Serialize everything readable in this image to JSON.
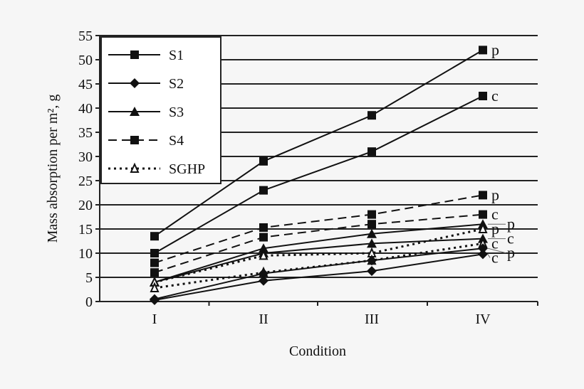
{
  "chart_data": {
    "type": "line",
    "xlabel": "Condition",
    "ylabel": "Mass absorption per m², g",
    "categories": [
      "I",
      "II",
      "III",
      "IV"
    ],
    "ylim": [
      0,
      55
    ],
    "yticks": [
      0,
      5,
      10,
      15,
      20,
      25,
      30,
      35,
      40,
      45,
      50,
      55
    ],
    "grid": "horizontal",
    "legend_position": "top-left",
    "legend": [
      {
        "name": "S1",
        "marker": "square",
        "dash": "solid"
      },
      {
        "name": "S2",
        "marker": "diamond",
        "dash": "solid"
      },
      {
        "name": "S3",
        "marker": "triangle",
        "dash": "solid"
      },
      {
        "name": "S4",
        "marker": "square",
        "dash": "dashed"
      },
      {
        "name": "SGHP",
        "marker": "open-triangle",
        "dash": "dotted"
      }
    ],
    "series": [
      {
        "group": "S1",
        "end_label": "p",
        "values": [
          13.5,
          29,
          38.5,
          52
        ]
      },
      {
        "group": "S1",
        "end_label": "c",
        "values": [
          10,
          23,
          31,
          42.5
        ]
      },
      {
        "group": "S4",
        "end_label": "p",
        "values": [
          8,
          15.3,
          18,
          22
        ]
      },
      {
        "group": "S4",
        "end_label": "c",
        "values": [
          6,
          13.3,
          16,
          18
        ]
      },
      {
        "group": "S3",
        "end_label": "p",
        "values": [
          4,
          11,
          14,
          16
        ]
      },
      {
        "group": "S3",
        "end_label": "c",
        "values": [
          4,
          10,
          12,
          13
        ]
      },
      {
        "group": "SGHP",
        "end_label": "p",
        "values": [
          4,
          9.5,
          10,
          15
        ]
      },
      {
        "group": "SGHP",
        "end_label": "c",
        "values": [
          2.8,
          6,
          8.5,
          12
        ]
      },
      {
        "group": "S2",
        "end_label": "p",
        "values": [
          0.5,
          5.8,
          8.5,
          11
        ]
      },
      {
        "group": "S2",
        "end_label": "c",
        "values": [
          0.3,
          4.3,
          6.3,
          9.8
        ]
      }
    ]
  }
}
